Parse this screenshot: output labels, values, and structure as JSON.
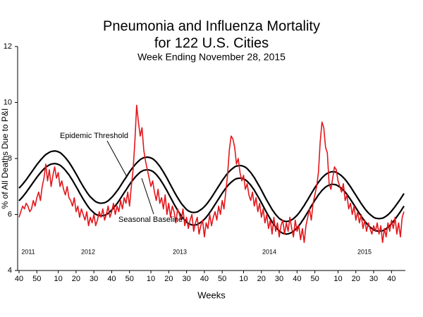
{
  "chart_data": {
    "type": "line",
    "title": "Pneumonia and Influenza Mortality",
    "title_line2": "for 122 U.S. Cities",
    "subtitle": "Week Ending November 28, 2015",
    "x_label": "Weeks",
    "y_label": "% of All Deaths Due to P&I",
    "year_labels": [
      "2011",
      "2012",
      "2013",
      "2014",
      "2015"
    ],
    "ylim": [
      4,
      12
    ],
    "yticks": [
      4,
      6,
      8,
      10,
      12
    ],
    "grid": false,
    "categories": [
      "40",
      null,
      null,
      null,
      null,
      null,
      null,
      null,
      null,
      null,
      "50",
      null,
      null,
      null,
      null,
      null,
      null,
      null,
      null,
      null,
      null,
      null,
      "10",
      null,
      null,
      null,
      null,
      null,
      null,
      null,
      null,
      null,
      "20",
      null,
      null,
      null,
      null,
      null,
      null,
      null,
      null,
      null,
      "30",
      null,
      null,
      null,
      null,
      null,
      null,
      null,
      null,
      null,
      "40",
      null,
      null,
      null,
      null,
      null,
      null,
      null,
      null,
      null,
      "50",
      null,
      null,
      null,
      null,
      null,
      null,
      null,
      null,
      null,
      null,
      null,
      "10",
      null,
      null,
      null,
      null,
      null,
      null,
      null,
      null,
      null,
      "20",
      null,
      null,
      null,
      null,
      null,
      null,
      null,
      null,
      null,
      "30",
      null,
      null,
      null,
      null,
      null,
      null,
      null,
      null,
      null,
      "40",
      null,
      null,
      null,
      null,
      null,
      null,
      null,
      null,
      null,
      "50",
      null,
      null,
      null,
      null,
      null,
      null,
      null,
      null,
      null,
      null,
      null,
      "10",
      null,
      null,
      null,
      null,
      null,
      null,
      null,
      null,
      null,
      "20",
      null,
      null,
      null,
      null,
      null,
      null,
      null,
      null,
      null,
      "30",
      null,
      null,
      null,
      null,
      null,
      null,
      null,
      null,
      null,
      "40",
      null,
      null,
      null,
      null,
      null,
      null,
      null,
      null,
      null,
      "50",
      null,
      null,
      null,
      null,
      null,
      null,
      null,
      null,
      null,
      null,
      null,
      null,
      "10",
      null,
      null,
      null,
      null,
      null,
      null,
      null,
      null,
      null,
      "20",
      null,
      null,
      null,
      null,
      null,
      null,
      null,
      null,
      null,
      "30",
      null,
      null,
      null,
      null,
      null,
      null,
      null,
      null,
      null,
      "40",
      null,
      null,
      null,
      null,
      null,
      null,
      null
    ],
    "series": [
      {
        "color": "#e3161b",
        "values": [
          5.9,
          6.1,
          6.3,
          6.2,
          6.4,
          6.3,
          6.1,
          6.2,
          6.5,
          6.3,
          6.6,
          6.8,
          6.5,
          7.0,
          7.3,
          7.8,
          7.2,
          7.6,
          7.0,
          7.4,
          7.7,
          7.3,
          7.5,
          7.0,
          7.2,
          6.9,
          6.7,
          7.0,
          6.6,
          6.5,
          6.3,
          6.6,
          6.1,
          6.3,
          5.9,
          6.2,
          6.0,
          5.8,
          6.1,
          5.6,
          5.9,
          5.7,
          6.0,
          5.6,
          5.8,
          6.1,
          5.9,
          6.2,
          5.8,
          6.0,
          6.3,
          5.9,
          6.1,
          6.4,
          6.0,
          6.3,
          6.1,
          6.5,
          6.2,
          6.6,
          6.4,
          6.8,
          6.3,
          7.0,
          7.6,
          8.6,
          9.9,
          9.3,
          8.8,
          9.1,
          8.3,
          7.9,
          7.6,
          7.3,
          7.0,
          7.2,
          6.8,
          6.5,
          6.9,
          6.4,
          6.6,
          6.2,
          6.7,
          6.0,
          6.4,
          5.9,
          6.3,
          6.1,
          5.7,
          6.2,
          6.0,
          5.8,
          6.2,
          5.6,
          5.9,
          5.5,
          5.8,
          6.0,
          5.4,
          5.7,
          5.9,
          5.3,
          5.6,
          5.8,
          5.2,
          5.7,
          5.5,
          6.0,
          5.6,
          5.9,
          6.1,
          5.8,
          6.3,
          6.0,
          6.5,
          6.2,
          6.8,
          7.4,
          8.3,
          8.8,
          8.7,
          8.4,
          7.8,
          8.0,
          7.5,
          7.2,
          7.4,
          6.9,
          7.1,
          6.7,
          6.5,
          6.8,
          6.3,
          6.6,
          6.1,
          6.4,
          5.9,
          6.2,
          5.7,
          6.0,
          5.5,
          5.8,
          5.3,
          5.9,
          5.4,
          5.7,
          5.2,
          5.6,
          5.8,
          5.3,
          5.7,
          5.4,
          5.9,
          5.5,
          5.2,
          5.8,
          5.4,
          5.6,
          5.1,
          5.5,
          5.0,
          5.6,
          5.9,
          6.2,
          5.8,
          6.4,
          6.7,
          7.0,
          7.5,
          8.6,
          9.3,
          9.1,
          8.4,
          8.2,
          7.1,
          6.9,
          7.3,
          7.7,
          7.6,
          7.2,
          7.0,
          6.8,
          7.1,
          6.5,
          6.7,
          6.2,
          6.4,
          6.0,
          6.3,
          5.8,
          6.1,
          5.7,
          6.0,
          5.5,
          5.8,
          5.4,
          5.7,
          5.5,
          5.3,
          5.6,
          5.4,
          5.7,
          5.3,
          5.6,
          5.0,
          5.5,
          5.2,
          5.7,
          5.4,
          5.8,
          5.5,
          5.9,
          5.3,
          5.7,
          5.2,
          5.9,
          6.1
        ]
      },
      {
        "name": "Epidemic Threshold",
        "color": "#000000",
        "values": [
          6.94,
          7.01,
          7.08,
          7.16,
          7.24,
          7.33,
          7.42,
          7.51,
          7.6,
          7.69,
          7.78,
          7.86,
          7.94,
          8.01,
          8.08,
          8.14,
          8.18,
          8.22,
          8.25,
          8.26,
          8.27,
          8.26,
          8.24,
          8.21,
          8.16,
          8.1,
          8.03,
          7.95,
          7.87,
          7.77,
          7.67,
          7.56,
          7.45,
          7.34,
          7.22,
          7.11,
          7.0,
          6.9,
          6.8,
          6.71,
          6.63,
          6.57,
          6.51,
          6.46,
          6.43,
          6.41,
          6.4,
          6.41,
          6.42,
          6.45,
          6.49,
          6.55,
          6.61,
          6.68,
          6.76,
          6.84,
          6.93,
          7.03,
          7.13,
          7.23,
          7.32,
          7.42,
          7.52,
          7.61,
          7.69,
          7.77,
          7.84,
          7.9,
          7.96,
          8.0,
          8.03,
          8.04,
          8.05,
          8.04,
          8.02,
          7.99,
          7.94,
          7.88,
          7.8,
          7.72,
          7.62,
          7.52,
          7.41,
          7.3,
          7.18,
          7.06,
          6.94,
          6.82,
          6.71,
          6.6,
          6.5,
          6.4,
          6.32,
          6.25,
          6.18,
          6.13,
          6.1,
          6.08,
          6.07,
          6.08,
          6.09,
          6.13,
          6.17,
          6.22,
          6.28,
          6.35,
          6.43,
          6.52,
          6.61,
          6.71,
          6.81,
          6.91,
          7.01,
          7.11,
          7.21,
          7.3,
          7.39,
          7.47,
          7.54,
          7.6,
          7.65,
          7.7,
          7.73,
          7.74,
          7.75,
          7.74,
          7.72,
          7.69,
          7.64,
          7.57,
          7.5,
          7.41,
          7.32,
          7.21,
          7.1,
          6.99,
          6.87,
          6.75,
          6.63,
          6.51,
          6.4,
          6.29,
          6.18,
          6.09,
          6.0,
          5.93,
          5.86,
          5.82,
          5.78,
          5.76,
          5.75,
          5.76,
          5.78,
          5.81,
          5.85,
          5.91,
          5.97,
          6.05,
          6.13,
          6.23,
          6.32,
          6.43,
          6.53,
          6.64,
          6.75,
          6.85,
          6.96,
          7.05,
          7.15,
          7.23,
          7.31,
          7.37,
          7.43,
          7.47,
          7.5,
          7.52,
          7.53,
          7.52,
          7.51,
          7.47,
          7.43,
          7.38,
          7.32,
          7.25,
          7.17,
          7.08,
          6.99,
          6.89,
          6.79,
          6.69,
          6.59,
          6.49,
          6.39,
          6.3,
          6.21,
          6.13,
          6.06,
          6.0,
          5.95,
          5.9,
          5.87,
          5.86,
          5.85,
          5.86,
          5.87,
          5.9,
          5.94,
          5.99,
          6.05,
          6.12,
          6.2,
          6.28,
          6.37,
          6.46,
          6.55,
          6.65,
          6.75
        ]
      },
      {
        "name": "Seasonal Baseline",
        "color": "#000000",
        "values": [
          6.49,
          6.56,
          6.63,
          6.71,
          6.79,
          6.88,
          6.97,
          7.06,
          7.15,
          7.24,
          7.33,
          7.41,
          7.49,
          7.56,
          7.63,
          7.69,
          7.73,
          7.77,
          7.8,
          7.81,
          7.82,
          7.81,
          7.79,
          7.76,
          7.71,
          7.65,
          7.58,
          7.5,
          7.42,
          7.32,
          7.22,
          7.11,
          7.0,
          6.89,
          6.77,
          6.66,
          6.55,
          6.45,
          6.35,
          6.26,
          6.18,
          6.12,
          6.06,
          6.01,
          5.98,
          5.96,
          5.95,
          5.96,
          5.97,
          6.0,
          6.04,
          6.1,
          6.16,
          6.23,
          6.31,
          6.39,
          6.48,
          6.58,
          6.68,
          6.78,
          6.87,
          6.97,
          7.07,
          7.16,
          7.24,
          7.32,
          7.39,
          7.45,
          7.51,
          7.55,
          7.58,
          7.59,
          7.6,
          7.59,
          7.57,
          7.54,
          7.49,
          7.43,
          7.35,
          7.27,
          7.17,
          7.07,
          6.96,
          6.85,
          6.73,
          6.61,
          6.49,
          6.37,
          6.26,
          6.15,
          6.05,
          5.95,
          5.87,
          5.8,
          5.73,
          5.68,
          5.65,
          5.63,
          5.62,
          5.63,
          5.64,
          5.68,
          5.72,
          5.77,
          5.83,
          5.9,
          5.98,
          6.07,
          6.16,
          6.26,
          6.36,
          6.46,
          6.56,
          6.66,
          6.76,
          6.85,
          6.94,
          7.02,
          7.09,
          7.15,
          7.2,
          7.25,
          7.28,
          7.29,
          7.3,
          7.29,
          7.27,
          7.24,
          7.19,
          7.12,
          7.05,
          6.96,
          6.87,
          6.76,
          6.65,
          6.54,
          6.42,
          6.3,
          6.18,
          6.06,
          5.95,
          5.84,
          5.73,
          5.64,
          5.55,
          5.48,
          5.41,
          5.37,
          5.33,
          5.31,
          5.3,
          5.31,
          5.33,
          5.36,
          5.4,
          5.46,
          5.52,
          5.6,
          5.68,
          5.78,
          5.87,
          5.98,
          6.08,
          6.19,
          6.3,
          6.4,
          6.51,
          6.6,
          6.7,
          6.78,
          6.86,
          6.92,
          6.98,
          7.02,
          7.05,
          7.07,
          7.08,
          7.07,
          7.06,
          7.02,
          6.98,
          6.93,
          6.87,
          6.8,
          6.72,
          6.63,
          6.54,
          6.44,
          6.34,
          6.24,
          6.14,
          6.04,
          5.94,
          5.85,
          5.76,
          5.68,
          5.61,
          5.55,
          5.5,
          5.45,
          5.42,
          5.41,
          5.4,
          5.41,
          5.42,
          5.45,
          5.49,
          5.54,
          5.6,
          5.67,
          5.75,
          5.83,
          5.92,
          6.01,
          6.1,
          6.2,
          6.3
        ]
      }
    ]
  }
}
